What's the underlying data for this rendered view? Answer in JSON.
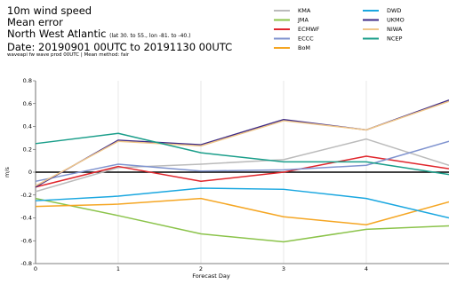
{
  "header": {
    "title_line1": "10m wind speed",
    "title_line2": "Mean error",
    "region": "North West Atlantic",
    "region_coords": "(lat  30. to 55.,  lon  -81. to  -40.)",
    "date_range": "Date: 20190901 00UTC to 20191130 00UTC",
    "note": "waveapi fw wave prod 00UTC | Mean method: fair"
  },
  "chart_data": {
    "type": "line",
    "xlabel": "Forecast Day",
    "ylabel": "m/s",
    "xlim": [
      0,
      5
    ],
    "ylim": [
      -0.8,
      0.8
    ],
    "x_ticks": [
      "0",
      "1",
      "2",
      "3",
      "4"
    ],
    "y_ticks": [
      "-0.8",
      "-0.6",
      "-0.4",
      "-0.2",
      "0",
      "0.2",
      "0.4",
      "0.6",
      "0.8"
    ],
    "x": [
      0,
      1,
      2,
      3,
      4,
      5
    ],
    "series": [
      {
        "name": "KMA",
        "color": "#bbbbbb",
        "values": [
          -0.17,
          0.04,
          0.07,
          0.11,
          0.29,
          0.06
        ]
      },
      {
        "name": "JMA",
        "color": "#8bc34a",
        "values": [
          -0.23,
          -0.38,
          -0.54,
          -0.61,
          -0.5,
          -0.47
        ]
      },
      {
        "name": "ECMWF",
        "color": "#e0262c",
        "values": [
          -0.13,
          0.05,
          -0.08,
          0.0,
          0.14,
          0.03
        ]
      },
      {
        "name": "ECCC",
        "color": "#7f93cf",
        "values": [
          -0.08,
          0.07,
          0.01,
          0.02,
          0.06,
          0.27
        ]
      },
      {
        "name": "BoM",
        "color": "#f5a623",
        "values": [
          -0.3,
          -0.28,
          -0.23,
          -0.39,
          -0.46,
          -0.26
        ]
      },
      {
        "name": "DWD",
        "color": "#1aa7e0",
        "values": [
          -0.25,
          -0.21,
          -0.14,
          -0.15,
          -0.23,
          -0.4
        ]
      },
      {
        "name": "UKMO",
        "color": "#3d2a86",
        "values": [
          -0.13,
          0.28,
          0.24,
          0.46,
          0.37,
          0.63
        ]
      },
      {
        "name": "NIWA",
        "color": "#f0c78a",
        "values": [
          -0.12,
          0.27,
          0.23,
          0.45,
          0.37,
          0.62
        ]
      },
      {
        "name": "NCEP",
        "color": "#1a9e8a",
        "values": [
          0.25,
          0.34,
          0.17,
          0.09,
          0.09,
          -0.02
        ]
      }
    ],
    "legend_columns": [
      [
        "KMA",
        "JMA",
        "ECMWF",
        "ECCC",
        "BoM"
      ],
      [
        "DWD",
        "UKMO",
        "NIWA",
        "NCEP"
      ]
    ],
    "legend_placement": "top-right",
    "grid": "vertical",
    "zero_line": true
  }
}
